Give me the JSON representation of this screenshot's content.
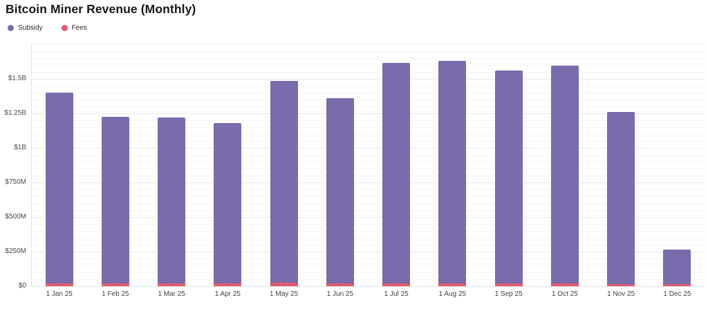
{
  "title": "Bitcoin Miner Revenue (Monthly)",
  "legend": {
    "items": [
      {
        "label": "Subsidy",
        "color": "#796bac"
      },
      {
        "label": "Fees",
        "color": "#dd5a6e"
      }
    ]
  },
  "chart_data": {
    "type": "bar",
    "stacked": true,
    "title": "Bitcoin Miner Revenue (Monthly)",
    "units": "USD millions",
    "legend_position": "top-left",
    "grid": true,
    "categories": [
      "1 Jan 25",
      "1 Feb 25",
      "1 Mar 25",
      "1 Apr 25",
      "1 May 25",
      "1 Jun 25",
      "1 Jul 25",
      "1 Aug 25",
      "1 Sep 25",
      "1 Oct 25",
      "1 Nov 25",
      "1 Dec 25"
    ],
    "series": [
      {
        "name": "Subsidy",
        "color": "#796bac",
        "stack_position": "top",
        "values": [
          1378,
          1205,
          1200,
          1162,
          1460,
          1338,
          1593,
          1610,
          1540,
          1577,
          1246,
          251
        ]
      },
      {
        "name": "Fees",
        "color": "#dd5a6e",
        "stack_position": "bottom",
        "values": [
          22,
          20,
          20,
          18,
          25,
          22,
          22,
          20,
          20,
          18,
          16,
          14
        ]
      }
    ],
    "totals": [
      1400,
      1225,
      1220,
      1180,
      1485,
      1360,
      1615,
      1630,
      1560,
      1595,
      1262,
      265
    ],
    "yticks": [
      {
        "label": "$1.5B",
        "value": 1500
      },
      {
        "label": "$1.25B",
        "value": 1250
      },
      {
        "label": "$1B",
        "value": 1000
      },
      {
        "label": "$750M",
        "value": 750
      },
      {
        "label": "$500M",
        "value": 500
      },
      {
        "label": "$250M",
        "value": 250
      },
      {
        "label": "$0",
        "value": 0
      }
    ],
    "ylim": [
      0,
      1750
    ],
    "minor_grid_step": 50,
    "major_grid_step": 250
  }
}
